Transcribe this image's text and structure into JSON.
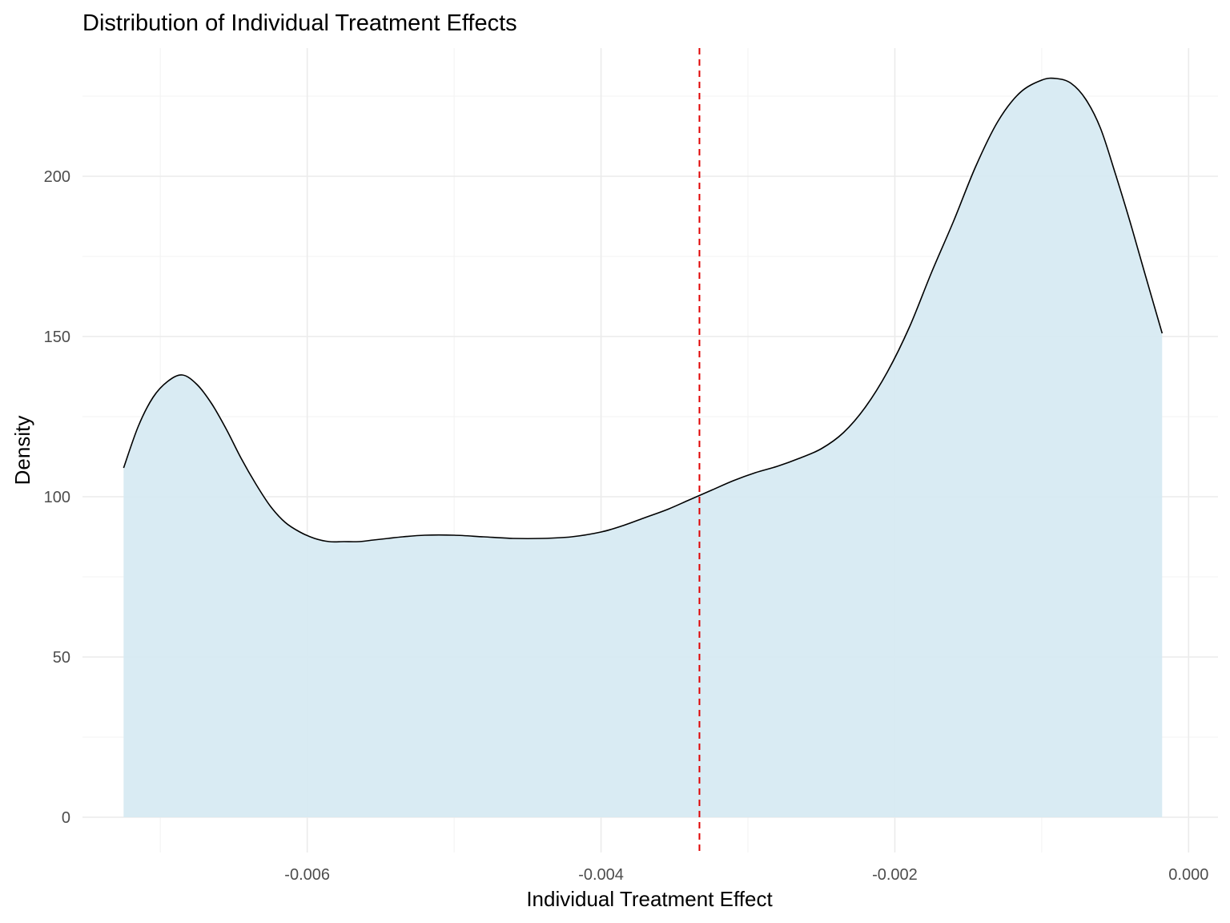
{
  "chart_data": {
    "type": "area",
    "title": "Distribution of Individual Treatment Effects",
    "xlabel": "Individual Treatment Effect",
    "ylabel": "Density",
    "xlim": [
      -0.00753,
      0.0002
    ],
    "ylim": [
      -11,
      240
    ],
    "x_ticks": [
      -0.006,
      -0.004,
      -0.002,
      0.0
    ],
    "x_tick_labels": [
      "-0.006",
      "-0.004",
      "-0.002",
      "0.000"
    ],
    "y_ticks": [
      0,
      50,
      100,
      150,
      200
    ],
    "y_tick_labels": [
      "0",
      "50",
      "100",
      "150",
      "200"
    ],
    "grid": true,
    "fill_color": "#d7eaf2",
    "line_color": "#000000",
    "mean_line": {
      "x": -0.00333,
      "color": "#e00000",
      "style": "dashed"
    },
    "series": [
      {
        "x": [
          -0.00725,
          -0.00715,
          -0.00705,
          -0.00695,
          -0.00685,
          -0.00675,
          -0.00665,
          -0.00655,
          -0.00645,
          -0.00635,
          -0.00625,
          -0.00615,
          -0.00605,
          -0.00595,
          -0.00585,
          -0.00575,
          -0.00565,
          -0.00555,
          -0.00545,
          -0.00535,
          -0.0052,
          -0.005,
          -0.0048,
          -0.0046,
          -0.0044,
          -0.0042,
          -0.004,
          -0.00385,
          -0.0037,
          -0.00355,
          -0.0034,
          -0.00325,
          -0.0031,
          -0.00295,
          -0.0028,
          -0.00265,
          -0.0025,
          -0.00235,
          -0.0022,
          -0.00205,
          -0.0019,
          -0.00175,
          -0.0016,
          -0.00145,
          -0.0013,
          -0.00115,
          -0.001,
          -0.0009,
          -0.0008,
          -0.0007,
          -0.0006,
          -0.0005,
          -0.0004,
          -0.0003,
          -0.00018
        ],
        "y": [
          109,
          122,
          131,
          136,
          138,
          135,
          129,
          121,
          112,
          104,
          97,
          92,
          89,
          87,
          86,
          86,
          86,
          86.5,
          87,
          87.5,
          88,
          88,
          87.5,
          87,
          87,
          87.5,
          89,
          91,
          93.5,
          96,
          99,
          102,
          105,
          107.5,
          109.5,
          112,
          115,
          120,
          128,
          139,
          153,
          170,
          186,
          203,
          217,
          226,
          230,
          230.5,
          229,
          224,
          215,
          201,
          186,
          170,
          151
        ]
      }
    ]
  }
}
